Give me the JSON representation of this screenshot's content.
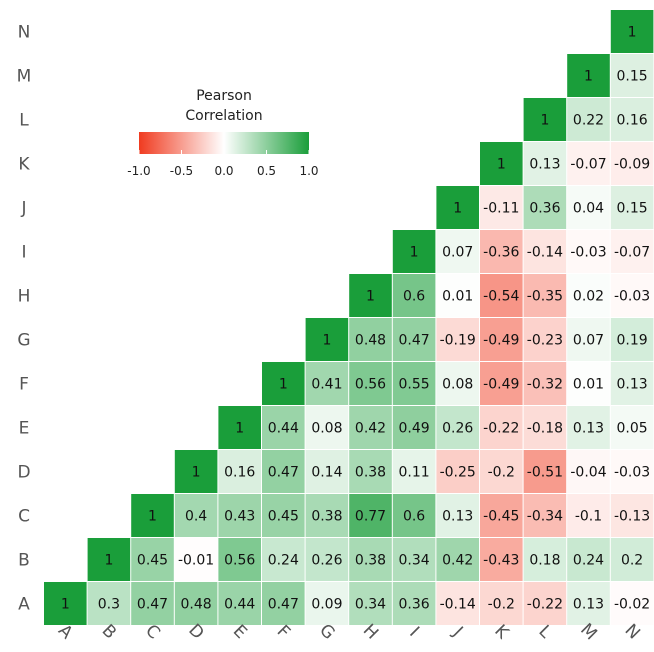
{
  "chart_data": {
    "type": "heatmap",
    "title": "",
    "xlabel": "",
    "ylabel": "",
    "variables": [
      "A",
      "B",
      "C",
      "D",
      "E",
      "F",
      "G",
      "H",
      "I",
      "J",
      "K",
      "L",
      "M",
      "N"
    ],
    "shape": "upper-triangular",
    "color_scale": {
      "low": "#f03b20",
      "mid": "#ffffff",
      "high": "#1a9e3a",
      "range": [
        -1.0,
        1.0
      ]
    },
    "legend": {
      "title_lines": [
        "Pearson",
        "Correlation"
      ],
      "ticks": [
        "-1.0",
        "-0.5",
        "0.0",
        "0.5",
        "1.0"
      ],
      "values": [
        -1.0,
        -0.5,
        0.0,
        0.5,
        1.0
      ],
      "placement": "upper-left"
    },
    "rows": [
      {
        "y": "A",
        "x": [
          "A",
          "B",
          "C",
          "D",
          "E",
          "F",
          "G",
          "H",
          "I",
          "J",
          "K",
          "L",
          "M",
          "N"
        ],
        "labels": [
          "1",
          "0.3",
          "0.47",
          "0.48",
          "0.44",
          "0.47",
          "0.09",
          "0.34",
          "0.36",
          "-0.14",
          "-0.2",
          "-0.22",
          "0.13",
          "-0.02"
        ]
      },
      {
        "y": "B",
        "x": [
          "B",
          "C",
          "D",
          "E",
          "F",
          "G",
          "H",
          "I",
          "J",
          "K",
          "L",
          "M",
          "N"
        ],
        "labels": [
          "1",
          "0.45",
          "-0.01",
          "0.56",
          "0.24",
          "0.26",
          "0.38",
          "0.34",
          "0.42",
          "-0.43",
          "0.18",
          "0.24",
          "0.2"
        ]
      },
      {
        "y": "C",
        "x": [
          "C",
          "D",
          "E",
          "F",
          "G",
          "H",
          "I",
          "J",
          "K",
          "L",
          "M",
          "N"
        ],
        "labels": [
          "1",
          "0.4",
          "0.43",
          "0.45",
          "0.38",
          "0.77",
          "0.6",
          "0.13",
          "-0.45",
          "-0.34",
          "-0.1",
          "-0.13"
        ]
      },
      {
        "y": "D",
        "x": [
          "D",
          "E",
          "F",
          "G",
          "H",
          "I",
          "J",
          "K",
          "L",
          "M",
          "N"
        ],
        "labels": [
          "1",
          "0.16",
          "0.47",
          "0.14",
          "0.38",
          "0.11",
          "-0.25",
          "-0.2",
          "-0.51",
          "-0.04",
          "-0.03"
        ]
      },
      {
        "y": "E",
        "x": [
          "E",
          "F",
          "G",
          "H",
          "I",
          "J",
          "K",
          "L",
          "M",
          "N"
        ],
        "labels": [
          "1",
          "0.44",
          "0.08",
          "0.42",
          "0.49",
          "0.26",
          "-0.22",
          "-0.18",
          "0.13",
          "0.05"
        ]
      },
      {
        "y": "F",
        "x": [
          "F",
          "G",
          "H",
          "I",
          "J",
          "K",
          "L",
          "M",
          "N"
        ],
        "labels": [
          "1",
          "0.41",
          "0.56",
          "0.55",
          "0.08",
          "-0.49",
          "-0.32",
          "0.01",
          "0.13"
        ]
      },
      {
        "y": "G",
        "x": [
          "G",
          "H",
          "I",
          "J",
          "K",
          "L",
          "M",
          "N"
        ],
        "labels": [
          "1",
          "0.48",
          "0.47",
          "-0.19",
          "-0.49",
          "-0.23",
          "0.07",
          "0.19"
        ]
      },
      {
        "y": "H",
        "x": [
          "H",
          "I",
          "J",
          "K",
          "L",
          "M",
          "N"
        ],
        "labels": [
          "1",
          "0.6",
          "0.01",
          "-0.54",
          "-0.35",
          "0.02",
          "-0.03"
        ]
      },
      {
        "y": "I",
        "x": [
          "I",
          "J",
          "K",
          "L",
          "M",
          "N"
        ],
        "labels": [
          "1",
          "0.07",
          "-0.36",
          "-0.14",
          "-0.03",
          "-0.07"
        ]
      },
      {
        "y": "J",
        "x": [
          "J",
          "K",
          "L",
          "M",
          "N"
        ],
        "labels": [
          "1",
          "-0.11",
          "0.36",
          "0.04",
          "0.15"
        ]
      },
      {
        "y": "K",
        "x": [
          "K",
          "L",
          "M",
          "N"
        ],
        "labels": [
          "1",
          "0.13",
          "-0.07",
          "-0.09"
        ]
      },
      {
        "y": "L",
        "x": [
          "L",
          "M",
          "N"
        ],
        "labels": [
          "1",
          "0.22",
          "0.16"
        ]
      },
      {
        "y": "M",
        "x": [
          "M",
          "N"
        ],
        "labels": [
          "1",
          "0.15"
        ]
      },
      {
        "y": "N",
        "x": [
          "N"
        ],
        "labels": [
          "1"
        ]
      }
    ]
  }
}
